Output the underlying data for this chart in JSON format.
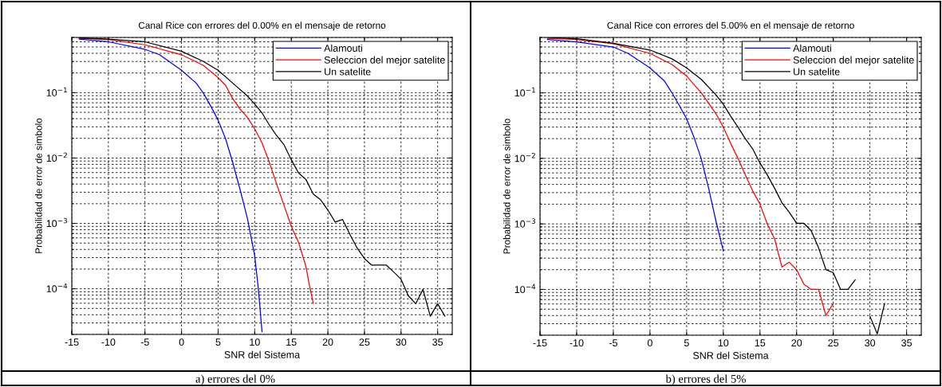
{
  "chart_data": [
    {
      "type": "line",
      "title": "Canal Rice con errores del 0.00% en el mensaje de retorno",
      "xlabel": "SNR del Sistema",
      "ylabel": "Probabilidad de error de simbolo",
      "log": "y",
      "grid": true,
      "legend": "top right",
      "line_style": "solid",
      "marker": "none",
      "xlim": [
        -15,
        37
      ],
      "xticks": [
        -15,
        -10,
        -5,
        0,
        5,
        10,
        15,
        20,
        25,
        30,
        35
      ],
      "ylim": [
        2e-05,
        0.7
      ],
      "yticks": [
        {
          "value": 0.0001,
          "label": "10$^{−4}$"
        },
        {
          "value": 0.001,
          "label": "10$^{−3}$"
        },
        {
          "value": 0.01,
          "label": "10$^{−2}$"
        },
        {
          "value": 0.1,
          "label": "10$^{−1}$"
        }
      ],
      "annotations": [
        "a) errores del 0%"
      ],
      "series": [
        {
          "name": "Alamouti",
          "color": "#0000ff",
          "x": [
            -14,
            -10,
            -5,
            -3,
            0,
            2,
            3,
            4,
            5,
            6,
            7,
            8,
            9,
            10,
            10.5,
            11
          ],
          "values": [
            0.66,
            0.6,
            0.46,
            0.38,
            0.22,
            0.14,
            0.098,
            0.062,
            0.038,
            0.02,
            0.0085,
            0.0033,
            0.0012,
            0.00032,
            0.0001,
            2.2e-05
          ]
        },
        {
          "name": "Seleccion del mejor satelite",
          "color": "#ff0000",
          "x": [
            -14,
            -10,
            -5,
            0,
            3,
            5,
            6,
            7,
            8,
            9,
            10,
            11,
            12,
            13,
            14,
            15,
            16,
            17,
            17.5,
            18
          ],
          "values": [
            0.68,
            0.65,
            0.54,
            0.38,
            0.26,
            0.17,
            0.13,
            0.081,
            0.056,
            0.042,
            0.028,
            0.017,
            0.0086,
            0.004,
            0.0019,
            0.0009,
            0.00051,
            0.00022,
            0.00011,
            6e-05
          ]
        },
        {
          "name": "Un satelite",
          "color": "#000000",
          "x": [
            -14,
            -10,
            -5,
            0,
            3,
            5,
            7,
            9,
            10,
            11,
            12,
            13,
            14,
            15,
            16,
            17,
            18,
            19,
            20,
            21,
            22,
            23,
            24,
            25,
            26,
            27,
            28,
            29,
            30,
            31,
            32,
            33,
            34,
            35,
            36
          ],
          "values": [
            0.69,
            0.66,
            0.6,
            0.43,
            0.3,
            0.22,
            0.14,
            0.089,
            0.067,
            0.049,
            0.032,
            0.022,
            0.016,
            0.0094,
            0.0059,
            0.0047,
            0.0028,
            0.0023,
            0.0016,
            0.00105,
            0.00115,
            0.00068,
            0.00042,
            0.00029,
            0.00023,
            0.00023,
            0.00023,
            0.00018,
            0.00014,
            7.8e-05,
            5.9e-05,
            9.8e-05,
            3.8e-05,
            5.9e-05,
            3.8e-05
          ]
        }
      ]
    },
    {
      "type": "line",
      "title": "Canal Rice con errores del 5.00% en el mensaje de retorno",
      "xlabel": "SNR del Sistema",
      "ylabel": "Probabilidad de error de simbolo",
      "log": "y",
      "grid": true,
      "legend": "top right",
      "line_style": "solid",
      "marker": "none",
      "xlim": [
        -15,
        37
      ],
      "xticks": [
        -15,
        -10,
        -5,
        0,
        5,
        10,
        15,
        20,
        25,
        30,
        35
      ],
      "ylim": [
        2e-05,
        0.7
      ],
      "yticks": [
        {
          "value": 0.0001,
          "label": "10$^{−4}$"
        },
        {
          "value": 0.001,
          "label": "10$^{−3}$"
        },
        {
          "value": 0.01,
          "label": "10$^{−2}$"
        },
        {
          "value": 0.1,
          "label": "10$^{−1}$"
        }
      ],
      "annotations": [
        "b) errores del 5%"
      ],
      "series": [
        {
          "name": "Alamouti",
          "color": "#0000ff",
          "x": [
            -14,
            -10,
            -5,
            -3,
            0,
            2,
            3,
            4,
            5,
            6,
            7,
            8,
            9,
            10
          ],
          "values": [
            0.65,
            0.6,
            0.5,
            0.4,
            0.24,
            0.15,
            0.1,
            0.064,
            0.04,
            0.021,
            0.0098,
            0.0035,
            0.0011,
            0.00039
          ]
        },
        {
          "name": "Seleccion del mejor satelite",
          "color": "#ff0000",
          "x": [
            -14,
            -10,
            -5,
            0,
            3,
            5,
            7,
            9,
            10,
            11,
            12,
            13,
            14,
            15,
            16,
            17,
            18,
            19,
            20,
            21,
            22,
            23,
            24,
            25
          ],
          "values": [
            0.68,
            0.65,
            0.56,
            0.4,
            0.27,
            0.18,
            0.1,
            0.048,
            0.03,
            0.017,
            0.01,
            0.0056,
            0.0032,
            0.002,
            0.001,
            0.00059,
            0.00022,
            0.00026,
            0.0002,
            0.00012,
            0.0001,
            0.0001,
            4e-05,
            6.1e-05
          ]
        },
        {
          "name": "Un satelite",
          "color": "#000000",
          "x": [
            -14,
            -10,
            -5,
            0,
            3,
            5,
            7,
            9,
            10,
            11,
            12,
            13,
            14,
            15,
            16,
            17,
            18,
            19,
            20,
            21,
            22,
            23,
            24,
            25,
            26,
            27,
            28,
            29,
            30,
            31,
            32
          ],
          "values": [
            0.7,
            0.67,
            0.57,
            0.45,
            0.33,
            0.24,
            0.16,
            0.093,
            0.067,
            0.044,
            0.03,
            0.02,
            0.014,
            0.0085,
            0.0056,
            0.0035,
            0.0021,
            0.0015,
            0.00102,
            0.00102,
            0.00078,
            0.00043,
            0.0002,
            0.00018,
            0.0001,
            0.0001,
            0.00014,
            null,
            3.9e-05,
            2.1e-05,
            6.1e-05
          ]
        }
      ]
    }
  ]
}
